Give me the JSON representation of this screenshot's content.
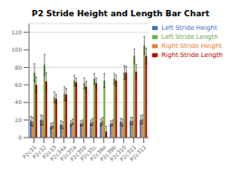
{
  "chart_data": {
    "type": "bar",
    "title": "P2 Stride Height and Length Bar Chart",
    "categories": [
      "P2c31",
      "P2c32",
      "P2c33",
      "P2c34a",
      "P2c35a",
      "P2c35b",
      "P2c35c",
      "P2c36e",
      "P2c39b",
      "P2c310",
      "P2c311",
      "P2c312"
    ],
    "series": [
      {
        "name": "Left Stride Height",
        "color": "#4472c4",
        "values": [
          19,
          20,
          13,
          15,
          16,
          16,
          17,
          17,
          16,
          18,
          19,
          20
        ],
        "errors": [
          5,
          6,
          3,
          4,
          3,
          3,
          3,
          4,
          3,
          4,
          4,
          5
        ]
      },
      {
        "name": "Right Stride Height",
        "color": "#ed7d31",
        "values": [
          18,
          20,
          14,
          14,
          18,
          17,
          18,
          19,
          17,
          17,
          19,
          21
        ],
        "errors": [
          5,
          5,
          3,
          4,
          3,
          3,
          4,
          4,
          3,
          4,
          4,
          5
        ]
      },
      {
        "name": "Left Stride Length",
        "color": "#70ad47",
        "values": [
          74,
          83,
          46,
          50,
          65,
          62,
          67,
          65,
          67,
          74,
          93,
          105
        ],
        "errors": [
          10,
          12,
          6,
          8,
          6,
          6,
          6,
          8,
          6,
          8,
          8,
          10
        ]
      },
      {
        "name": "Right Stride Length",
        "color": "#c00000",
        "values": [
          60,
          64,
          44,
          49,
          63,
          58,
          62,
          7,
          65,
          74,
          75,
          93
        ],
        "errors": [
          9,
          10,
          5,
          7,
          5,
          6,
          6,
          6,
          6,
          7,
          8,
          9
        ]
      }
    ],
    "ylim": [
      0,
      130
    ],
    "yticks": [
      0,
      20,
      40,
      60,
      80,
      100,
      120
    ],
    "grid": true,
    "legend": "right"
  }
}
